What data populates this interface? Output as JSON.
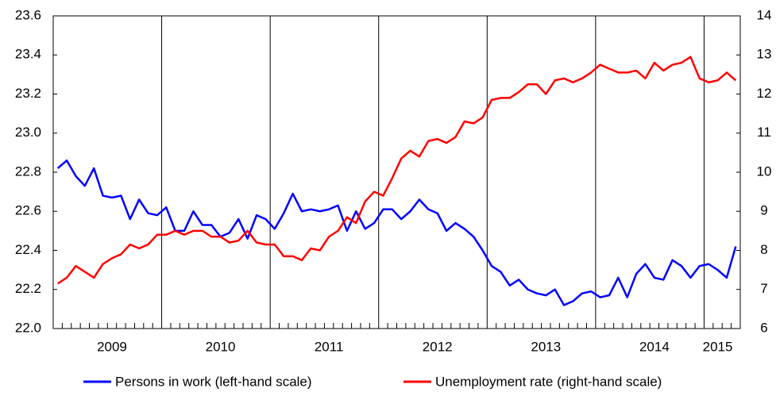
{
  "chart_data": {
    "type": "line",
    "categories": [
      null,
      null,
      null,
      null,
      null,
      null,
      "2009",
      null,
      null,
      null,
      null,
      null,
      null,
      null,
      null,
      null,
      null,
      null,
      "2010",
      null,
      null,
      null,
      null,
      null,
      null,
      null,
      null,
      null,
      null,
      null,
      "2011",
      null,
      null,
      null,
      null,
      null,
      null,
      null,
      null,
      null,
      null,
      null,
      "2012",
      null,
      null,
      null,
      null,
      null,
      null,
      null,
      null,
      null,
      null,
      null,
      "2013",
      null,
      null,
      null,
      null,
      null,
      null,
      null,
      null,
      null,
      null,
      null,
      "2014",
      null,
      null,
      null,
      null,
      null,
      null,
      "2015",
      null,
      null
    ],
    "series": [
      {
        "name": "Persons in work (left-hand scale)",
        "color": "#0000ff",
        "axis": "y",
        "values": [
          22.82,
          22.86,
          22.78,
          22.73,
          22.82,
          22.68,
          22.67,
          22.68,
          22.56,
          22.66,
          22.59,
          22.58,
          22.62,
          22.5,
          22.5,
          22.6,
          22.53,
          22.53,
          22.47,
          22.49,
          22.56,
          22.46,
          22.58,
          22.56,
          22.51,
          22.59,
          22.69,
          22.6,
          22.61,
          22.6,
          22.61,
          22.63,
          22.5,
          22.6,
          22.51,
          22.54,
          22.61,
          22.61,
          22.56,
          22.6,
          22.66,
          22.61,
          22.59,
          22.5,
          22.54,
          22.51,
          22.47,
          22.4,
          22.32,
          22.29,
          22.22,
          22.25,
          22.2,
          22.18,
          22.17,
          22.2,
          22.12,
          22.14,
          22.18,
          22.19,
          22.16,
          22.17,
          22.26,
          22.16,
          22.28,
          22.33,
          22.26,
          22.25,
          22.35,
          22.32,
          22.26,
          22.32,
          22.33,
          22.3,
          22.26,
          22.42
        ]
      },
      {
        "name": "Unemployment rate (right-hand scale)",
        "color": "#ff0000",
        "axis": "y2",
        "values": [
          7.15,
          7.3,
          7.6,
          7.45,
          7.3,
          7.65,
          7.8,
          7.9,
          8.15,
          8.05,
          8.15,
          8.4,
          8.4,
          8.5,
          8.4,
          8.5,
          8.5,
          8.35,
          8.35,
          8.2,
          8.25,
          8.5,
          8.2,
          8.15,
          8.15,
          7.85,
          7.85,
          7.75,
          8.05,
          8.0,
          8.35,
          8.5,
          8.85,
          8.7,
          9.25,
          9.5,
          9.4,
          9.85,
          10.35,
          10.55,
          10.4,
          10.8,
          10.85,
          10.75,
          10.9,
          11.3,
          11.25,
          11.4,
          11.85,
          11.9,
          11.9,
          12.05,
          12.25,
          12.25,
          12.0,
          12.35,
          12.4,
          12.3,
          12.4,
          12.55,
          12.75,
          12.65,
          12.55,
          12.55,
          12.6,
          12.4,
          12.8,
          12.6,
          12.75,
          12.8,
          12.95,
          12.4,
          12.3,
          12.35,
          12.55,
          12.35
        ]
      }
    ],
    "ylim": [
      22.0,
      23.6
    ],
    "yticks": [
      {
        "value": 22.0,
        "label": "22.0"
      },
      22.2,
      22.4,
      22.6,
      22.8,
      {
        "value": 23.0,
        "label": "23.0"
      },
      23.2,
      23.4,
      23.6
    ],
    "y2lim": [
      6,
      14
    ],
    "y2ticks": [
      6,
      7,
      8,
      9,
      10,
      11,
      12,
      13,
      14
    ],
    "grid": false
  }
}
